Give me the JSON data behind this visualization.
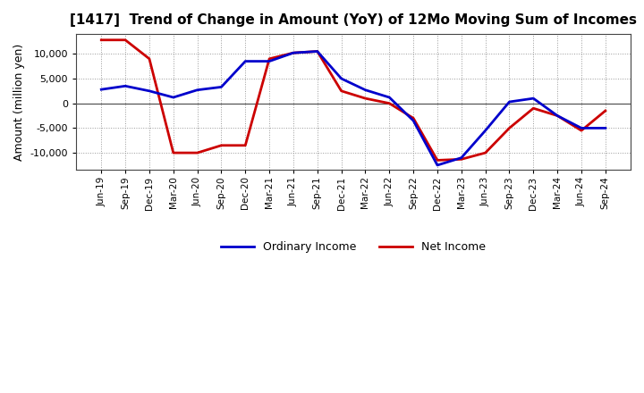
{
  "title": "[1417]  Trend of Change in Amount (YoY) of 12Mo Moving Sum of Incomes",
  "ylabel": "Amount (million yen)",
  "x_labels": [
    "Jun-19",
    "Sep-19",
    "Dec-19",
    "Mar-20",
    "Jun-20",
    "Sep-20",
    "Dec-20",
    "Mar-21",
    "Jun-21",
    "Sep-21",
    "Dec-21",
    "Mar-22",
    "Jun-22",
    "Sep-22",
    "Dec-22",
    "Mar-23",
    "Jun-23",
    "Sep-23",
    "Dec-23",
    "Mar-24",
    "Jun-24",
    "Sep-24"
  ],
  "ordinary_income": [
    2800,
    3500,
    2500,
    1200,
    2700,
    3300,
    8500,
    8500,
    10200,
    10500,
    5000,
    2700,
    1200,
    -3500,
    -12500,
    -11000,
    -5500,
    300,
    1000,
    -2500,
    -5000,
    -5000
  ],
  "net_income": [
    12800,
    12800,
    9000,
    -10000,
    -10000,
    -8500,
    -8500,
    9000,
    10200,
    10500,
    2500,
    1000,
    0,
    -3000,
    -11500,
    -11300,
    -10000,
    -5000,
    -1000,
    -2500,
    -5500,
    -1500
  ],
  "ordinary_income_color": "#0000cc",
  "net_income_color": "#cc0000",
  "line_width": 2.0,
  "ylim": [
    -13500,
    14000
  ],
  "yticks": [
    -10000,
    -5000,
    0,
    5000,
    10000
  ],
  "background_color": "#ffffff",
  "grid_color": "#999999",
  "legend_ordinary": "Ordinary Income",
  "legend_net": "Net Income",
  "title_fontsize": 11,
  "ylabel_fontsize": 9,
  "tick_fontsize": 8,
  "xtick_fontsize": 7.5
}
